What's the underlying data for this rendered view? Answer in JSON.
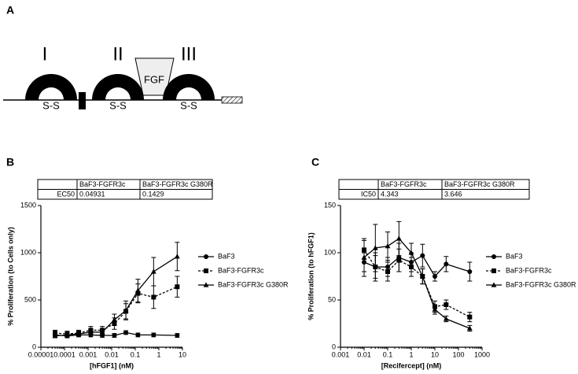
{
  "diagram": {
    "panel_label": "A",
    "domains": [
      "I",
      "II",
      "III"
    ],
    "ligand": "FGF",
    "bonds": [
      "S-S",
      "S-S",
      "S-S"
    ]
  },
  "chart_data": [
    {
      "type": "scatter",
      "panel_label": "B",
      "table": {
        "columns": [
          "BaF3-FGFR3c",
          "BaF3-FGFR3c G380R"
        ],
        "rows": [
          [
            "EC50",
            "0.04931",
            "0.1429"
          ]
        ]
      },
      "xlabel": "[hFGF1] (nM)",
      "ylabel": "% Proliferation (to Cells only)",
      "xscale": "log",
      "xlim": [
        1e-05,
        10
      ],
      "xticks": [
        1e-05,
        0.0001,
        0.001,
        0.01,
        0.1,
        1,
        10
      ],
      "ylim": [
        0,
        1500
      ],
      "yticks": [
        0,
        500,
        1000,
        1500
      ],
      "legend": "right",
      "x": [
        4e-05,
        0.00013,
        0.0004,
        0.0013,
        0.004,
        0.013,
        0.04,
        0.13,
        0.6,
        6
      ],
      "series": [
        {
          "name": "BaF3",
          "color": "#000000",
          "marker": "circle",
          "dashed": false,
          "values": [
            130,
            120,
            130,
            130,
            125,
            125,
            155,
            130,
            130,
            125
          ],
          "errors": [
            20,
            20,
            20,
            20,
            20,
            20,
            20,
            20,
            20,
            20
          ]
        },
        {
          "name": "BaF3-FGFR3c",
          "color": "#000000",
          "marker": "square",
          "dashed": true,
          "values": [
            150,
            140,
            150,
            180,
            180,
            250,
            380,
            570,
            530,
            640
          ],
          "errors": [
            30,
            30,
            30,
            40,
            40,
            60,
            80,
            100,
            120,
            110
          ]
        },
        {
          "name": "BaF3-FGFR3c G380R",
          "color": "#000000",
          "marker": "triangle",
          "dashed": false,
          "values": [
            120,
            130,
            140,
            160,
            160,
            290,
            390,
            600,
            800,
            960
          ],
          "errors": [
            20,
            20,
            20,
            30,
            30,
            60,
            100,
            120,
            150,
            150
          ]
        }
      ]
    },
    {
      "type": "scatter",
      "panel_label": "C",
      "table": {
        "columns": [
          "BaF3-FGFR3c",
          "BaF3-FGFR3c G380R"
        ],
        "rows": [
          [
            "IC50",
            "4.343",
            "3.646"
          ]
        ]
      },
      "xlabel": "[Recifercept] (nM)",
      "ylabel": "% Proliferation (to hFGF1)",
      "xscale": "log",
      "xlim": [
        0.001,
        1000
      ],
      "xticks": [
        0.001,
        0.01,
        0.1,
        1,
        10,
        100,
        1000
      ],
      "ylim": [
        0,
        150
      ],
      "yticks": [
        0,
        50,
        100,
        150
      ],
      "legend": "right",
      "x": [
        0.01,
        0.03,
        0.1,
        0.3,
        1,
        3,
        10,
        30,
        300
      ],
      "series": [
        {
          "name": "BaF3",
          "color": "#000000",
          "marker": "circle",
          "dashed": false,
          "values": [
            90,
            85,
            85,
            95,
            90,
            97,
            75,
            88,
            80
          ],
          "errors": [
            10,
            12,
            10,
            15,
            10,
            12,
            5,
            8,
            10
          ]
        },
        {
          "name": "BaF3-FGFR3c",
          "color": "#000000",
          "marker": "square",
          "dashed": true,
          "values": [
            103,
            85,
            80,
            92,
            85,
            75,
            43,
            45,
            32
          ],
          "errors": [
            10,
            15,
            10,
            12,
            10,
            8,
            6,
            5,
            5
          ]
        },
        {
          "name": "BaF3-FGFR3c G380R",
          "color": "#000000",
          "marker": "triangle",
          "dashed": false,
          "values": [
            95,
            105,
            107,
            115,
            100,
            75,
            40,
            30,
            20
          ],
          "errors": [
            20,
            25,
            15,
            18,
            10,
            8,
            5,
            3,
            3
          ]
        }
      ]
    }
  ]
}
